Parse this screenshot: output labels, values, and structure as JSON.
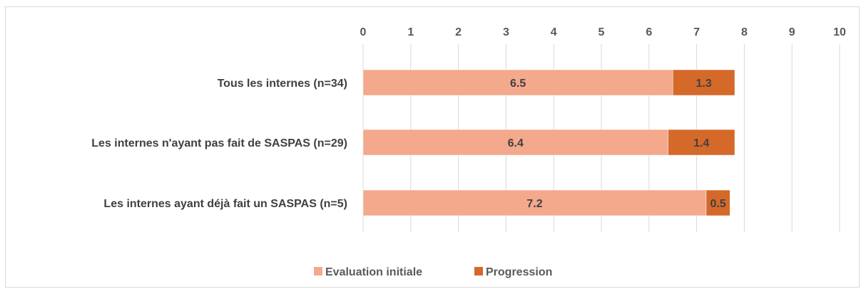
{
  "chart_data": {
    "type": "bar",
    "orientation": "horizontal",
    "stacked": true,
    "categories": [
      "Tous les internes (n=34)",
      "Les internes n'ayant pas fait de SASPAS (n=29)",
      "Les internes ayant déjà fait un SASPAS (n=5)"
    ],
    "series": [
      {
        "name": "Evaluation initiale",
        "values": [
          6.5,
          6.4,
          7.2
        ],
        "labels": [
          "6.5",
          "6.4",
          "7.2"
        ],
        "color": "#F4A98C"
      },
      {
        "name": "Progression",
        "values": [
          1.3,
          1.4,
          0.5
        ],
        "labels": [
          "1.3",
          "1.4",
          "0.5"
        ],
        "color": "#D5692A"
      }
    ],
    "xlim": [
      0,
      10
    ],
    "xticks": [
      "0",
      "1",
      "2",
      "3",
      "4",
      "5",
      "6",
      "7",
      "8",
      "9",
      "10"
    ],
    "xaxis_position": "top",
    "grid": true,
    "legend": "bottom"
  }
}
